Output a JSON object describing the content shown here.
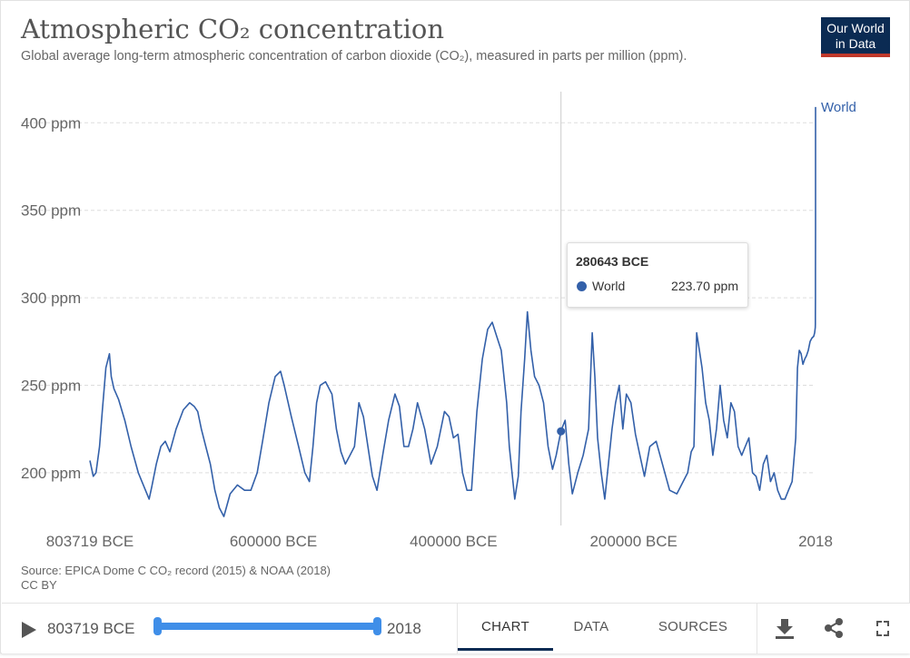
{
  "header": {
    "title": "Atmospheric CO₂ concentration",
    "subtitle": "Global average long-term atmospheric concentration of carbon dioxide (CO₂), measured in parts per million (ppm).",
    "logo_line1": "Our World",
    "logo_line2": "in Data"
  },
  "colors": {
    "series": "#3360a9",
    "logo_bg": "#0b2b53",
    "logo_accent": "#c0392b",
    "slider": "#3f8ee8"
  },
  "chart_data": {
    "type": "line",
    "title": "Atmospheric CO₂ concentration",
    "xlabel": "",
    "ylabel": "",
    "x_tick_labels": [
      "803719 BCE",
      "600000 BCE",
      "400000 BCE",
      "200000 BCE",
      "2018"
    ],
    "x_tick_years": [
      -803719,
      -600000,
      -400000,
      -200000,
      2018
    ],
    "y_ticks": [
      200,
      250,
      300,
      350,
      400
    ],
    "y_tick_labels": [
      "200 ppm",
      "250 ppm",
      "300 ppm",
      "350 ppm",
      "400 ppm"
    ],
    "xlim": [
      -803719,
      2018
    ],
    "ylim": [
      173,
      410
    ],
    "grid": "horizontal dashed",
    "legend": "end-of-line label",
    "series": [
      {
        "name": "World",
        "x": [
          -803719,
          -800000,
          -797000,
          -793000,
          -790000,
          -786000,
          -782000,
          -780000,
          -777000,
          -772000,
          -765000,
          -758000,
          -750000,
          -742000,
          -738000,
          -735000,
          -730000,
          -725000,
          -720000,
          -715000,
          -708000,
          -700000,
          -693000,
          -688000,
          -684000,
          -680000,
          -675000,
          -670000,
          -665000,
          -660000,
          -655000,
          -648000,
          -640000,
          -632000,
          -625000,
          -618000,
          -612000,
          -605000,
          -598000,
          -592000,
          -588000,
          -580000,
          -572000,
          -565000,
          -560000,
          -556000,
          -552000,
          -548000,
          -542000,
          -535000,
          -530000,
          -525000,
          -520000,
          -515000,
          -510000,
          -505000,
          -500000,
          -495000,
          -490000,
          -485000,
          -478000,
          -472000,
          -465000,
          -460000,
          -455000,
          -450000,
          -445000,
          -440000,
          -432000,
          -425000,
          -418000,
          -410000,
          -405000,
          -400000,
          -395000,
          -390000,
          -385000,
          -380000,
          -374000,
          -368000,
          -362000,
          -357000,
          -352000,
          -347000,
          -341000,
          -338000,
          -335000,
          -332000,
          -328000,
          -325000,
          -321000,
          -318000,
          -314000,
          -310000,
          -305000,
          -300000,
          -295000,
          -290000,
          -286000,
          -280643,
          -276000,
          -272000,
          -268000,
          -262000,
          -256000,
          -250000,
          -246000,
          -243000,
          -240000,
          -236000,
          -232000,
          -228000,
          -224000,
          -220000,
          -216000,
          -212000,
          -208000,
          -203000,
          -198000,
          -193000,
          -188000,
          -182000,
          -175000,
          -168000,
          -160000,
          -152000,
          -145000,
          -140000,
          -136000,
          -133000,
          -130000,
          -127000,
          -124000,
          -120000,
          -116000,
          -112000,
          -108000,
          -104000,
          -100000,
          -96000,
          -92000,
          -88000,
          -84000,
          -80000,
          -76000,
          -72000,
          -68000,
          -64000,
          -60000,
          -56000,
          -52000,
          -48000,
          -44000,
          -40000,
          -36000,
          -32000,
          -28000,
          -24000,
          -20000,
          -18000,
          -16000,
          -14000,
          -12000,
          -10000,
          -8000,
          -6000,
          -4000,
          -2000,
          0,
          1000,
          1700,
          1800,
          1850,
          1900,
          1950,
          1980,
          2000,
          2018
        ],
        "y": [
          207,
          198,
          200,
          215,
          235,
          260,
          268,
          255,
          248,
          242,
          230,
          215,
          200,
          190,
          185,
          192,
          205,
          215,
          218,
          212,
          225,
          236,
          240,
          238,
          235,
          225,
          215,
          205,
          190,
          180,
          175,
          188,
          193,
          190,
          190,
          200,
          218,
          240,
          255,
          258,
          250,
          232,
          215,
          200,
          195,
          215,
          240,
          250,
          252,
          245,
          225,
          212,
          205,
          210,
          215,
          240,
          232,
          215,
          198,
          190,
          212,
          230,
          245,
          238,
          215,
          215,
          225,
          240,
          225,
          205,
          215,
          235,
          232,
          220,
          222,
          200,
          190,
          190,
          235,
          265,
          282,
          286,
          278,
          270,
          240,
          215,
          200,
          185,
          198,
          235,
          265,
          292,
          270,
          255,
          250,
          240,
          215,
          202,
          210,
          224,
          230,
          205,
          188,
          200,
          210,
          225,
          280,
          255,
          220,
          200,
          185,
          205,
          225,
          240,
          250,
          225,
          245,
          240,
          222,
          210,
          198,
          215,
          218,
          205,
          190,
          188,
          195,
          200,
          212,
          215,
          280,
          270,
          260,
          240,
          230,
          210,
          225,
          250,
          230,
          220,
          240,
          235,
          215,
          210,
          215,
          220,
          200,
          198,
          190,
          205,
          210,
          195,
          200,
          190,
          185,
          185,
          190,
          195,
          220,
          260,
          270,
          268,
          262,
          265,
          267,
          270,
          275,
          277,
          278,
          280,
          283,
          285,
          290,
          300,
          315,
          340,
          370,
          409
        ]
      }
    ],
    "tooltip": {
      "year_label": "280643 BCE",
      "series": "World",
      "value_label": "223.70 ppm",
      "x": -280643,
      "y": 223.7
    },
    "end_label": "World"
  },
  "source": {
    "line1": "Source: EPICA Dome C CO₂ record (2015) & NOAA (2018)",
    "line2": "CC BY"
  },
  "footer": {
    "start_label": "803719 BCE",
    "end_label": "2018",
    "tabs": [
      "CHART",
      "DATA",
      "SOURCES"
    ],
    "active_tab": "CHART"
  }
}
